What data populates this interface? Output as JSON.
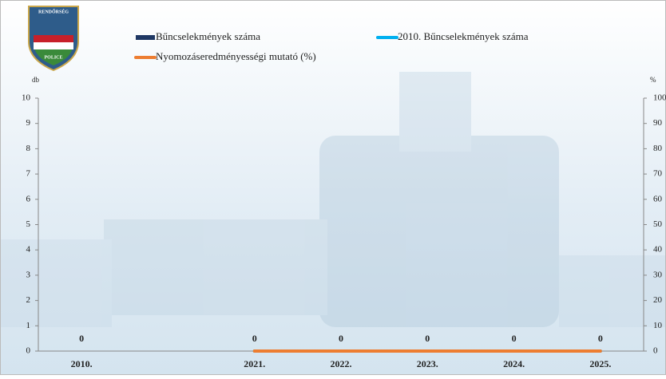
{
  "logo": {
    "top": "RENDŐRSÉG",
    "bottom": "POLICE"
  },
  "chart_data": {
    "type": "bar",
    "categories": [
      "2010.",
      null,
      "2021.",
      "2022.",
      "2023.",
      "2024.",
      "2025."
    ],
    "y_label": "db",
    "y2_label": "%",
    "ylim": [
      0,
      10
    ],
    "yticks": [
      0,
      1,
      2,
      3,
      4,
      5,
      6,
      7,
      8,
      9,
      10
    ],
    "y2lim": [
      0,
      100
    ],
    "y2ticks": [
      0,
      10,
      20,
      30,
      40,
      50,
      60,
      70,
      80,
      90,
      100
    ],
    "series": [
      {
        "name": "Bűncselekmények száma",
        "type": "bar",
        "color": "#1f3864",
        "values": [
          0,
          null,
          0,
          0,
          0,
          0,
          0
        ]
      },
      {
        "name": "2010. Bűncselekmények száma",
        "type": "line",
        "color": "#00b0f0",
        "values": [
          null,
          null,
          0,
          0,
          0,
          0,
          0
        ]
      },
      {
        "name": "Nyomozáseredményességi mutató (%)",
        "type": "line",
        "axis": "y2",
        "color": "#ed7d31",
        "values": [
          null,
          null,
          0,
          0,
          0,
          0,
          0
        ]
      }
    ]
  }
}
